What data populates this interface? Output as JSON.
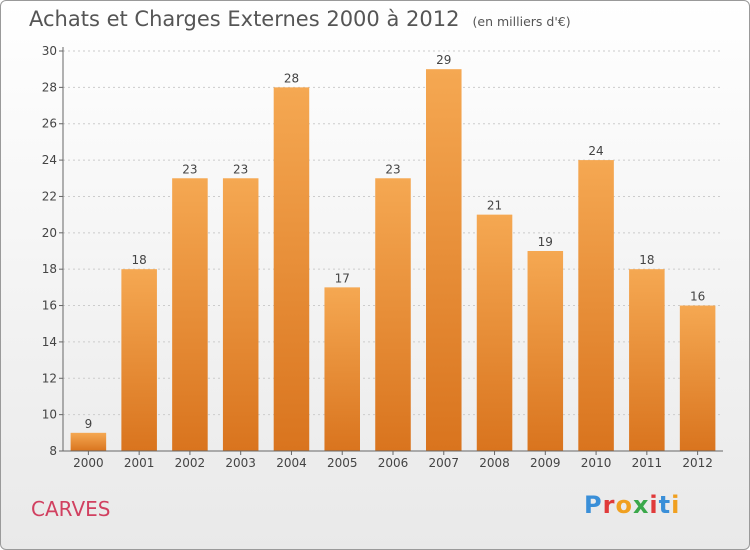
{
  "header": {
    "title": "Achats et Charges Externes 2000 à 2012",
    "unit": "(en milliers d'€)"
  },
  "footer": {
    "commune": "CARVES",
    "logo_text": "Proxiti"
  },
  "logo_colors": [
    "#3a8fd8",
    "#e03a3a",
    "#f0a020",
    "#3aa84a",
    "#e03a3a",
    "#3a8fd8",
    "#f0a020"
  ],
  "colors": {
    "bar_top": "#f5a852",
    "bar_bottom": "#d9741e",
    "axis": "#666666",
    "grid": "#cccccc",
    "text": "#444444"
  },
  "chart_data": {
    "type": "bar",
    "categories": [
      "2000",
      "2001",
      "2002",
      "2003",
      "2004",
      "2005",
      "2006",
      "2007",
      "2008",
      "2009",
      "2010",
      "2011",
      "2012"
    ],
    "values": [
      9,
      18,
      23,
      23,
      28,
      17,
      23,
      29,
      21,
      19,
      24,
      18,
      16
    ],
    "title": "Achats et Charges Externes 2000 à 2012",
    "subtitle": "(en milliers d'€)",
    "ylim": [
      8,
      30
    ],
    "yticks": [
      8,
      10,
      12,
      14,
      16,
      18,
      20,
      22,
      24,
      26,
      28,
      30
    ],
    "grid": true,
    "data_labels": true
  }
}
